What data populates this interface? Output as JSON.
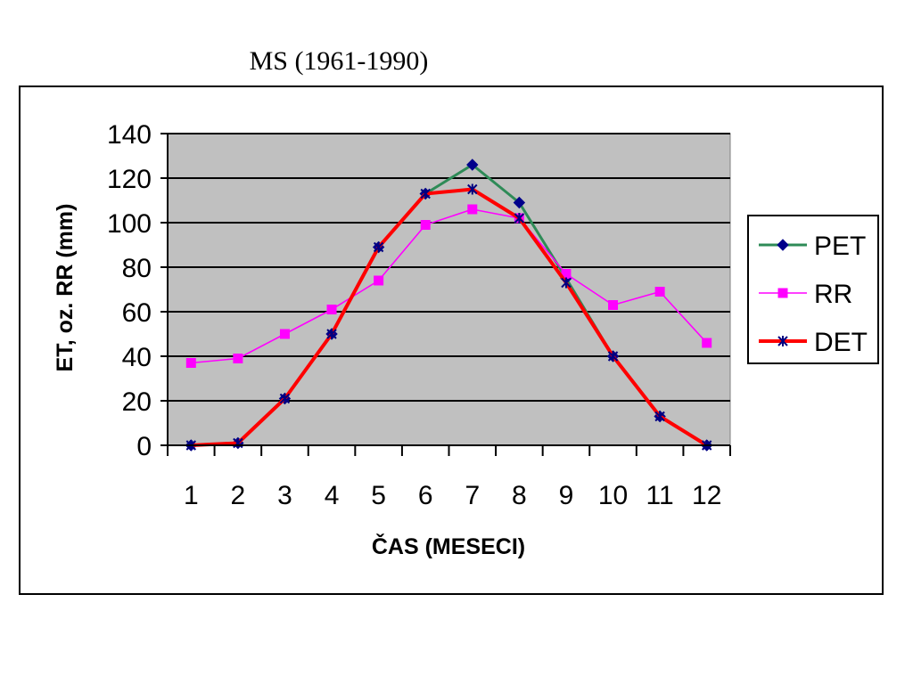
{
  "chart_data": {
    "type": "line",
    "title": "MS (1961-1990)",
    "xlabel": "ČAS (MESECI)",
    "ylabel": "ET, oz. RR (mm)",
    "categories": [
      "1",
      "2",
      "3",
      "4",
      "5",
      "6",
      "7",
      "8",
      "9",
      "10",
      "11",
      "12"
    ],
    "ylim": [
      0,
      140
    ],
    "yticks": [
      "0",
      "20",
      "40",
      "60",
      "80",
      "100",
      "120",
      "140"
    ],
    "grid": true,
    "legend_position": "right",
    "plot_background": "#c0c0c0",
    "series": [
      {
        "name": "PET",
        "color": "#2e8b57",
        "marker": "diamond",
        "marker_color": "#00008b",
        "values": [
          0,
          1,
          21,
          50,
          89,
          113,
          126,
          109,
          75,
          40,
          13,
          0
        ]
      },
      {
        "name": "RR",
        "color": "#ff00ff",
        "marker": "square",
        "marker_color": "#ff00ff",
        "values": [
          37,
          39,
          50,
          61,
          74,
          99,
          106,
          102,
          77,
          63,
          69,
          46
        ]
      },
      {
        "name": "DET",
        "color": "#ff0000",
        "marker": "star",
        "marker_color": "#000080",
        "values": [
          0,
          1,
          21,
          50,
          89,
          113,
          115,
          102,
          73,
          40,
          13,
          0
        ]
      }
    ]
  }
}
